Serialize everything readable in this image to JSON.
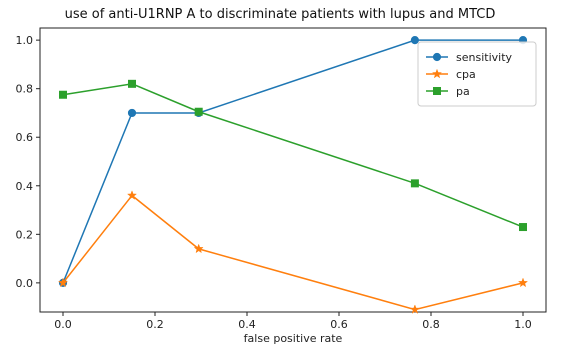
{
  "chart_data": {
    "type": "line",
    "title": "use of anti-U1RNP A to discriminate patients with lupus and MTCD",
    "xlabel": "false positive rate",
    "ylabel": "",
    "xlim": [
      -0.05,
      1.05
    ],
    "ylim": [
      -0.12,
      1.05
    ],
    "xticks": [
      0.0,
      0.2,
      0.4,
      0.6,
      0.8,
      1.0
    ],
    "xtick_labels": [
      "0.0",
      "0.2",
      "0.4",
      "0.6",
      "0.8",
      "1.0"
    ],
    "yticks": [
      0.0,
      0.2,
      0.4,
      0.6,
      0.8,
      1.0
    ],
    "ytick_labels": [
      "0.0",
      "0.2",
      "0.4",
      "0.6",
      "0.8",
      "1.0"
    ],
    "grid": false,
    "legend_position": "top-right",
    "series": [
      {
        "name": "sensitivity",
        "color": "#1f77b4",
        "marker": "circle",
        "x": [
          0.0,
          0.15,
          0.295,
          0.765,
          1.0
        ],
        "y": [
          0.0,
          0.7,
          0.7,
          1.0,
          1.0
        ]
      },
      {
        "name": "cpa",
        "color": "#ff7f0e",
        "marker": "star",
        "x": [
          0.0,
          0.15,
          0.295,
          0.765,
          1.0
        ],
        "y": [
          0.0,
          0.36,
          0.14,
          -0.11,
          0.0
        ]
      },
      {
        "name": "pa",
        "color": "#2ca02c",
        "marker": "square",
        "x": [
          0.0,
          0.15,
          0.295,
          0.765,
          1.0
        ],
        "y": [
          0.775,
          0.82,
          0.705,
          0.41,
          0.23
        ]
      }
    ]
  }
}
